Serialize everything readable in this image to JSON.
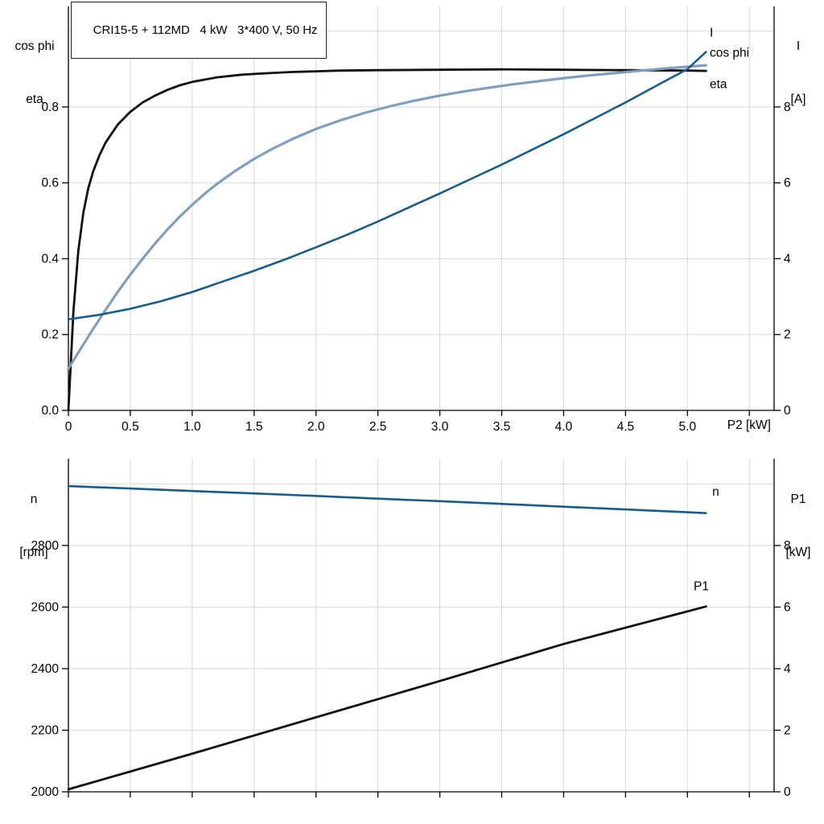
{
  "title_box": {
    "text": "CRI15-5 + 112MD   4 kW   3*400 V, 50 Hz"
  },
  "axis_labels": {
    "top_left": [
      "cos phi",
      "eta"
    ],
    "top_right": [
      "I",
      "[A]"
    ],
    "x_label": "P2 [kW]",
    "bottom_left": [
      "n",
      "[rpm]"
    ],
    "bottom_right": [
      "P1",
      "[kW]"
    ]
  },
  "colors": {
    "black": "#111111",
    "dark_blue": "#185d8a",
    "steel_blue": "#7f9fbf",
    "grid": "#d8d8d8",
    "axis": "#000000"
  },
  "chart_data": [
    {
      "type": "line",
      "title": "CRI15-5 + 112MD   4 kW   3*400 V, 50 Hz",
      "x": {
        "label": "P2 [kW]",
        "lim": [
          0,
          5.7
        ],
        "grid_step": 0.5,
        "ticks": [
          {
            "v": 0,
            "label": "0"
          },
          {
            "v": 0.5,
            "label": "0.5"
          },
          {
            "v": 1.0,
            "label": "1.0"
          },
          {
            "v": 1.5,
            "label": "1.5"
          },
          {
            "v": 2.0,
            "label": "2.0"
          },
          {
            "v": 2.5,
            "label": "2.5"
          },
          {
            "v": 3.0,
            "label": "3.0"
          },
          {
            "v": 3.5,
            "label": "3.5"
          },
          {
            "v": 4.0,
            "label": "4.0"
          },
          {
            "v": 4.5,
            "label": "4.5"
          },
          {
            "v": 5.0,
            "label": "5.0"
          }
        ]
      },
      "left_axis": {
        "label": "cos phi / eta",
        "lim": [
          0,
          1.065
        ],
        "grid_step": 0.2,
        "ticks": [
          {
            "v": 0.0,
            "label": "0.0"
          },
          {
            "v": 0.2,
            "label": "0.2"
          },
          {
            "v": 0.4,
            "label": "0.4"
          },
          {
            "v": 0.6,
            "label": "0.6"
          },
          {
            "v": 0.8,
            "label": "0.8"
          }
        ]
      },
      "right_axis": {
        "label": "I [A]",
        "lim": [
          0,
          10.65
        ],
        "ticks": [
          {
            "v": 0,
            "label": "0"
          },
          {
            "v": 2,
            "label": "2"
          },
          {
            "v": 4,
            "label": "4"
          },
          {
            "v": 6,
            "label": "6"
          },
          {
            "v": 8,
            "label": "8"
          }
        ]
      },
      "series": [
        {
          "key": "eta",
          "name": "eta",
          "axis": "left",
          "color": "#111111",
          "width": 2.8,
          "label": {
            "text": "eta",
            "x": 5.18,
            "y": 0.85
          },
          "points": [
            [
              0,
              0
            ],
            [
              0.04,
              0.26
            ],
            [
              0.08,
              0.42
            ],
            [
              0.12,
              0.52
            ],
            [
              0.16,
              0.585
            ],
            [
              0.2,
              0.63
            ],
            [
              0.25,
              0.672
            ],
            [
              0.3,
              0.706
            ],
            [
              0.4,
              0.754
            ],
            [
              0.5,
              0.787
            ],
            [
              0.6,
              0.812
            ],
            [
              0.7,
              0.83
            ],
            [
              0.8,
              0.845
            ],
            [
              0.9,
              0.857
            ],
            [
              1.0,
              0.866
            ],
            [
              1.2,
              0.878
            ],
            [
              1.4,
              0.885
            ],
            [
              1.6,
              0.889
            ],
            [
              1.8,
              0.892
            ],
            [
              2.0,
              0.894
            ],
            [
              2.2,
              0.896
            ],
            [
              2.5,
              0.897
            ],
            [
              3.0,
              0.898
            ],
            [
              3.5,
              0.899
            ],
            [
              4.0,
              0.898
            ],
            [
              4.5,
              0.897
            ],
            [
              5.0,
              0.896
            ],
            [
              5.15,
              0.895
            ]
          ]
        },
        {
          "key": "cos-phi",
          "name": "cos phi",
          "axis": "left",
          "color": "#7f9fbf",
          "width": 3.2,
          "label": {
            "text": "cos phi",
            "x": 5.18,
            "y": 0.932
          },
          "points": [
            [
              0,
              0.11
            ],
            [
              0.1,
              0.163
            ],
            [
              0.2,
              0.215
            ],
            [
              0.3,
              0.265
            ],
            [
              0.4,
              0.313
            ],
            [
              0.5,
              0.358
            ],
            [
              0.6,
              0.4
            ],
            [
              0.7,
              0.44
            ],
            [
              0.8,
              0.477
            ],
            [
              0.9,
              0.511
            ],
            [
              1.0,
              0.542
            ],
            [
              1.1,
              0.571
            ],
            [
              1.2,
              0.597
            ],
            [
              1.35,
              0.632
            ],
            [
              1.5,
              0.663
            ],
            [
              1.65,
              0.69
            ],
            [
              1.8,
              0.714
            ],
            [
              2.0,
              0.742
            ],
            [
              2.2,
              0.765
            ],
            [
              2.4,
              0.785
            ],
            [
              2.6,
              0.802
            ],
            [
              2.8,
              0.817
            ],
            [
              3.0,
              0.83
            ],
            [
              3.2,
              0.841
            ],
            [
              3.4,
              0.851
            ],
            [
              3.6,
              0.86
            ],
            [
              3.8,
              0.868
            ],
            [
              4.0,
              0.876
            ],
            [
              4.2,
              0.883
            ],
            [
              4.4,
              0.889
            ],
            [
              4.6,
              0.895
            ],
            [
              4.8,
              0.901
            ],
            [
              5.0,
              0.906
            ],
            [
              5.15,
              0.91
            ]
          ]
        },
        {
          "key": "i-current",
          "name": "I",
          "axis": "right",
          "color": "#185d8a",
          "width": 2.6,
          "label": {
            "text": "I",
            "x": 5.18,
            "y": 9.85
          },
          "points": [
            [
              0,
              2.4
            ],
            [
              0.25,
              2.52
            ],
            [
              0.5,
              2.68
            ],
            [
              0.75,
              2.88
            ],
            [
              1.0,
              3.12
            ],
            [
              1.25,
              3.4
            ],
            [
              1.5,
              3.68
            ],
            [
              1.75,
              3.98
            ],
            [
              2.0,
              4.3
            ],
            [
              2.25,
              4.63
            ],
            [
              2.5,
              4.98
            ],
            [
              2.75,
              5.35
            ],
            [
              3.0,
              5.72
            ],
            [
              3.25,
              6.1
            ],
            [
              3.5,
              6.48
            ],
            [
              3.75,
              6.88
            ],
            [
              4.0,
              7.28
            ],
            [
              4.25,
              7.7
            ],
            [
              4.5,
              8.12
            ],
            [
              4.75,
              8.56
            ],
            [
              5.0,
              9.0
            ],
            [
              5.15,
              9.45
            ]
          ]
        }
      ]
    },
    {
      "type": "line",
      "title": "",
      "x": {
        "label": "",
        "lim": [
          0,
          5.7
        ],
        "grid_step": 0.5,
        "ticks": []
      },
      "left_axis": {
        "label": "n [rpm]",
        "lim": [
          2000,
          3082
        ],
        "grid_step": 200,
        "ticks": [
          {
            "v": 2000,
            "label": "2000"
          },
          {
            "v": 2200,
            "label": "2200"
          },
          {
            "v": 2400,
            "label": "2400"
          },
          {
            "v": 2600,
            "label": "2600"
          },
          {
            "v": 2800,
            "label": "2800"
          }
        ]
      },
      "right_axis": {
        "label": "P1 [kW]",
        "lim": [
          0,
          10.82
        ],
        "ticks": [
          {
            "v": 0,
            "label": "0"
          },
          {
            "v": 2,
            "label": "2"
          },
          {
            "v": 4,
            "label": "4"
          },
          {
            "v": 6,
            "label": "6"
          },
          {
            "v": 8,
            "label": "8"
          }
        ]
      },
      "series": [
        {
          "key": "n-speed",
          "name": "n",
          "axis": "left",
          "color": "#185d8a",
          "width": 2.6,
          "label": {
            "text": "n",
            "x": 5.2,
            "y": 2962
          },
          "points": [
            [
              0,
              2993
            ],
            [
              0.5,
              2985
            ],
            [
              1.0,
              2977
            ],
            [
              1.5,
              2969
            ],
            [
              2.0,
              2961
            ],
            [
              2.5,
              2952
            ],
            [
              3.0,
              2944
            ],
            [
              3.5,
              2935
            ],
            [
              4.0,
              2926
            ],
            [
              4.5,
              2917
            ],
            [
              5.0,
              2908
            ],
            [
              5.15,
              2905
            ]
          ]
        },
        {
          "key": "p1-power",
          "name": "P1",
          "axis": "right",
          "color": "#111111",
          "width": 2.8,
          "label": {
            "text": "P1",
            "x": 5.05,
            "y": 6.55
          },
          "points": [
            [
              0,
              0.08
            ],
            [
              1.0,
              1.24
            ],
            [
              2.0,
              2.42
            ],
            [
              3.0,
              3.6
            ],
            [
              4.0,
              4.8
            ],
            [
              5.15,
              6.02
            ]
          ]
        }
      ]
    }
  ]
}
